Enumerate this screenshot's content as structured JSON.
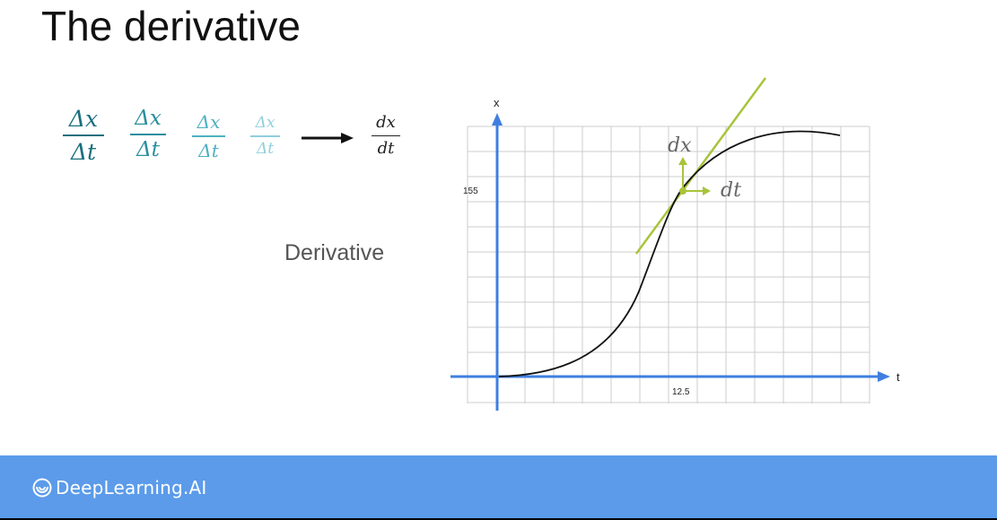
{
  "slide": {
    "title": "The derivative",
    "derivative_label": "Derivative"
  },
  "fractions": [
    {
      "num": "Δx",
      "den": "Δt",
      "color": "#1b6f80"
    },
    {
      "num": "Δx",
      "den": "Δt",
      "color": "#2a8ea0"
    },
    {
      "num": "Δx",
      "den": "Δt",
      "color": "#4fb0c2"
    },
    {
      "num": "Δx",
      "den": "Δt",
      "color": "#8fcfdc"
    }
  ],
  "limit_fraction": {
    "num": "dx",
    "den": "dt",
    "color": "#222222"
  },
  "plot": {
    "x_axis_label": "t",
    "y_axis_label": "x",
    "x_tick": "12.5",
    "y_tick": "155",
    "dx_label": "dx",
    "dt_label": "dt",
    "axis_color": "#3f7fe0",
    "tangent_color": "#a8c43a",
    "curve_color": "#111111",
    "grid_color": "#cccccc"
  },
  "footer": {
    "brand": "DeepLearning.AI",
    "color": "#5b9bea"
  }
}
